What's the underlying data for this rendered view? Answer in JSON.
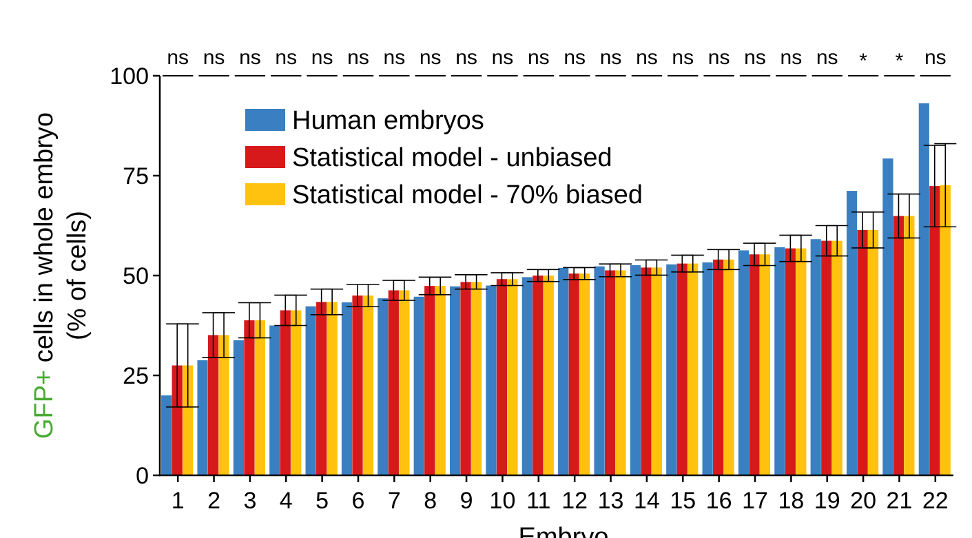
{
  "chart_data": {
    "type": "bar",
    "categories": [
      "1",
      "2",
      "3",
      "4",
      "5",
      "6",
      "7",
      "8",
      "9",
      "10",
      "11",
      "12",
      "13",
      "14",
      "15",
      "16",
      "17",
      "18",
      "19",
      "20",
      "21",
      "22"
    ],
    "series": [
      {
        "name": "Human embryos",
        "color": "#3a7fc1",
        "values": [
          20,
          28.8,
          33.8,
          37.5,
          42.3,
          43.3,
          44.3,
          44.7,
          47.3,
          47.5,
          49.6,
          51.9,
          52.3,
          52.6,
          52.8,
          53.3,
          56.3,
          57.1,
          59.1,
          71.2,
          79.3,
          93.1
        ]
      },
      {
        "name": "Statistical model - unbiased",
        "color": "#d7191c",
        "values": [
          27.5,
          35.1,
          38.8,
          41.3,
          43.4,
          45.0,
          46.3,
          47.4,
          48.4,
          49.1,
          50.0,
          50.5,
          51.3,
          52.0,
          53.0,
          54.0,
          55.3,
          56.8,
          58.7,
          61.4,
          64.9,
          72.4
        ],
        "errors": [
          10.4,
          5.6,
          4.4,
          3.8,
          3.2,
          2.8,
          2.5,
          2.2,
          1.8,
          1.6,
          1.5,
          1.5,
          1.6,
          1.9,
          2.1,
          2.5,
          2.8,
          3.3,
          3.8,
          4.5,
          5.5,
          10.2
        ]
      },
      {
        "name": "Statistical model - 70% biased",
        "color": "#ffc20e",
        "values": [
          27.5,
          35.1,
          38.8,
          41.3,
          43.4,
          45.0,
          46.3,
          47.4,
          48.4,
          49.1,
          50.0,
          50.5,
          51.3,
          52.0,
          53.0,
          54.0,
          55.3,
          56.8,
          58.7,
          61.4,
          64.9,
          72.6
        ],
        "errors": [
          10.4,
          5.6,
          4.4,
          3.8,
          3.2,
          2.8,
          2.5,
          2.2,
          1.8,
          1.6,
          1.5,
          1.5,
          1.6,
          1.9,
          2.1,
          2.5,
          2.8,
          3.3,
          3.8,
          4.5,
          5.5,
          10.4
        ]
      }
    ],
    "significance": [
      "ns",
      "ns",
      "ns",
      "ns",
      "ns",
      "ns",
      "ns",
      "ns",
      "ns",
      "ns",
      "ns",
      "ns",
      "ns",
      "ns",
      "ns",
      "ns",
      "ns",
      "ns",
      "ns",
      "*",
      "*",
      "ns"
    ],
    "ylim": [
      0,
      100
    ],
    "yticks": [
      0,
      25,
      50,
      75,
      100
    ],
    "xlabel": "Embryo",
    "ylabel_prefix": "GFP+",
    "ylabel_prefix_color": "#4aaa34",
    "ylabel_rest": " cells in whole embryo",
    "ylabel_line2": "(% of cells)",
    "legend_position": "top-left",
    "grid": false
  }
}
